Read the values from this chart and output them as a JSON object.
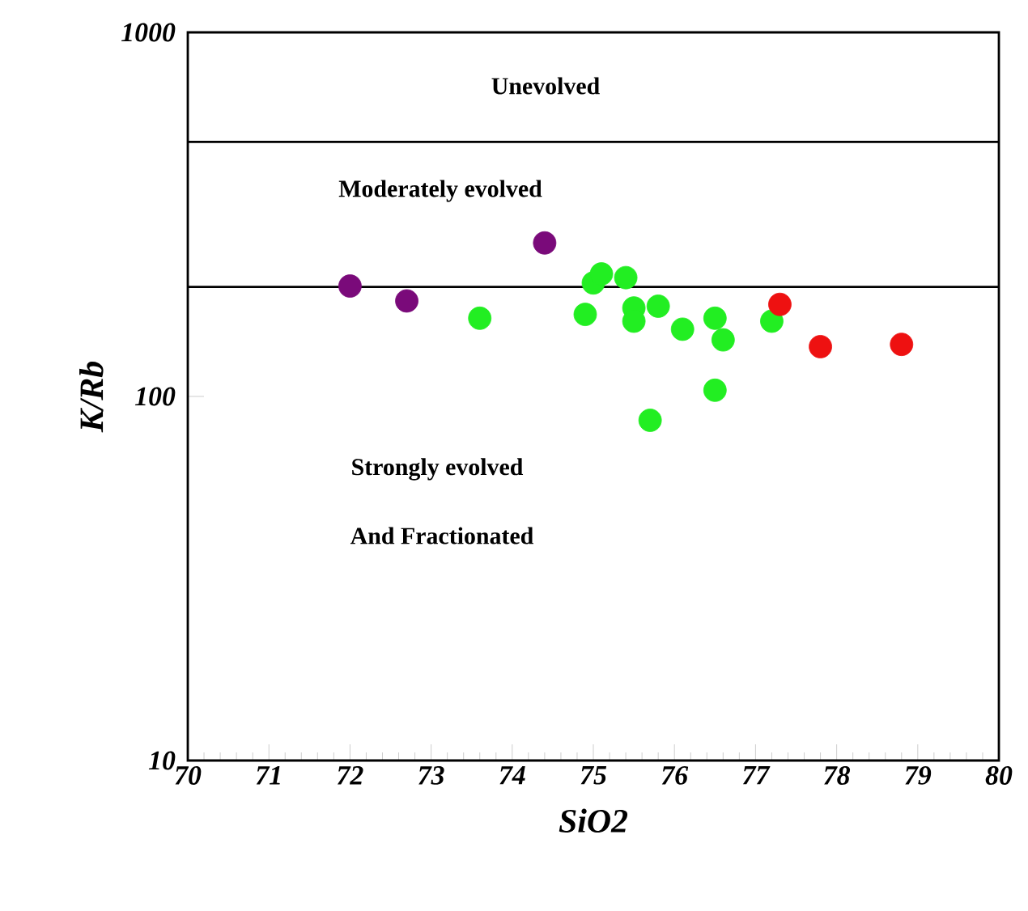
{
  "chart_data": {
    "type": "scatter",
    "xlabel": "SiO2",
    "ylabel": "K/Rb",
    "log": "y",
    "xlim": [
      70,
      80
    ],
    "ylim": [
      10,
      1000
    ],
    "xticks": [
      70,
      71,
      72,
      73,
      74,
      75,
      76,
      77,
      78,
      79,
      80
    ],
    "yticks": [
      10,
      100,
      1000
    ],
    "grid": false,
    "series": [
      {
        "color": "#7a0a7a",
        "x": [
          72.0,
          72.7,
          74.4
        ],
        "values": [
          201,
          183,
          264
        ]
      },
      {
        "color": "#22ee22",
        "x": [
          73.6,
          74.9,
          75.0,
          75.1,
          75.4,
          75.5,
          75.5,
          75.8,
          76.1,
          75.7,
          76.5,
          76.6,
          76.5,
          77.2
        ],
        "values": [
          164,
          168,
          205,
          217,
          212,
          175,
          161,
          177,
          153,
          86,
          164,
          143,
          104,
          161
        ]
      },
      {
        "color": "#ee1111",
        "x": [
          77.3,
          77.8,
          78.8
        ],
        "values": [
          179,
          137,
          139
        ]
      }
    ],
    "ref_lines": [
      {
        "axis": "y",
        "value": 500,
        "color": "#000000"
      },
      {
        "axis": "y",
        "value": 200,
        "color": "#000000"
      }
    ],
    "annotations": [
      "Unevolved",
      "Moderately evolved",
      "Strongly evolved",
      "And Fractionated"
    ]
  }
}
